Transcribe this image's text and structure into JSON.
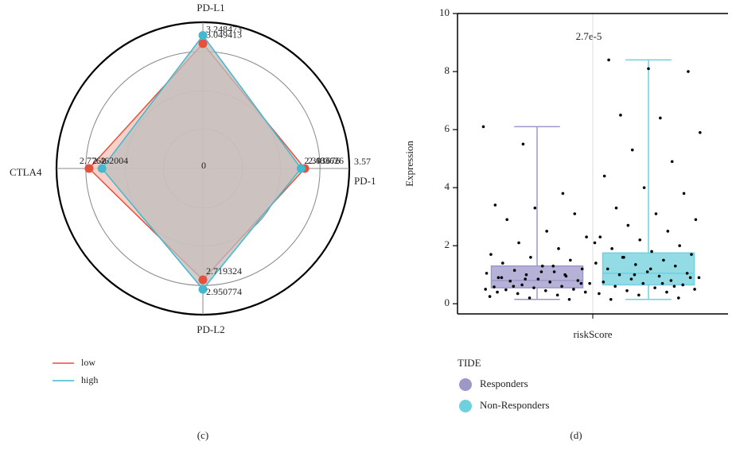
{
  "chart_data": [
    {
      "type": "radar",
      "caption": "(c)",
      "categories": [
        "PD-L1",
        "PD-1",
        "PD-L2",
        "CTLA4"
      ],
      "rlim": [
        0,
        3.57
      ],
      "rticks": [
        0,
        3.57
      ],
      "series": [
        {
          "name": "low",
          "color": "#e4513c",
          "fill": "#f3c5bd",
          "values": [
            3.049413,
            2.483626,
            2.719324,
            2.7762
          ]
        },
        {
          "name": "high",
          "color": "#44b8cc",
          "fill": "#bdbdbd",
          "values": [
            3.248473,
            2.393676,
            2.950774,
            2.462004
          ]
        }
      ]
    },
    {
      "type": "box",
      "caption": "(d)",
      "xlabel": "riskScore",
      "ylabel": "Expression",
      "annotation": "2.7e-5",
      "legend_title": "TIDE",
      "ylim": [
        -0.35,
        10
      ],
      "yticks": [
        0,
        2,
        4,
        6,
        8,
        10
      ],
      "series": [
        {
          "name": "Responders",
          "color": "#9d98ca",
          "whislo": 0.15,
          "q1": 0.55,
          "med": 0.8,
          "q3": 1.3,
          "whishi": 6.1,
          "points": [
            6.1,
            5.5,
            3.8,
            3.4,
            3.3,
            3.1,
            2.9,
            2.5,
            2.3,
            2.1,
            1.9,
            1.7,
            1.6,
            1.5,
            1.4,
            1.3,
            1.2,
            1.15,
            1.1,
            1.05,
            1.0,
            0.95,
            0.9,
            0.85,
            0.8,
            0.78,
            0.75,
            0.7,
            0.65,
            0.6,
            0.58,
            0.55,
            0.5,
            0.48,
            0.45,
            0.4,
            0.35,
            0.3,
            0.25,
            0.2,
            0.15,
            0.9,
            1.1,
            0.7,
            0.6,
            1.3,
            0.5,
            0.85,
            1.0,
            0.4
          ]
        },
        {
          "name": "Non-Responders",
          "color": "#6fd0de",
          "whislo": 0.15,
          "q1": 0.65,
          "med": 1.05,
          "q3": 1.75,
          "whishi": 8.4,
          "points": [
            8.4,
            8.1,
            8.0,
            6.5,
            6.4,
            5.9,
            5.3,
            4.9,
            4.4,
            4.0,
            3.8,
            3.3,
            3.1,
            2.9,
            2.7,
            2.5,
            2.3,
            2.2,
            2.0,
            1.9,
            1.8,
            1.7,
            1.6,
            1.5,
            1.4,
            1.35,
            1.3,
            1.2,
            1.1,
            1.05,
            1.0,
            0.95,
            0.9,
            0.85,
            0.8,
            0.75,
            0.7,
            0.65,
            0.6,
            0.55,
            0.5,
            0.45,
            0.4,
            0.35,
            0.3,
            0.2,
            0.15,
            1.2,
            0.9,
            1.6,
            0.7,
            2.1,
            1.0,
            0.6
          ]
        }
      ]
    }
  ]
}
